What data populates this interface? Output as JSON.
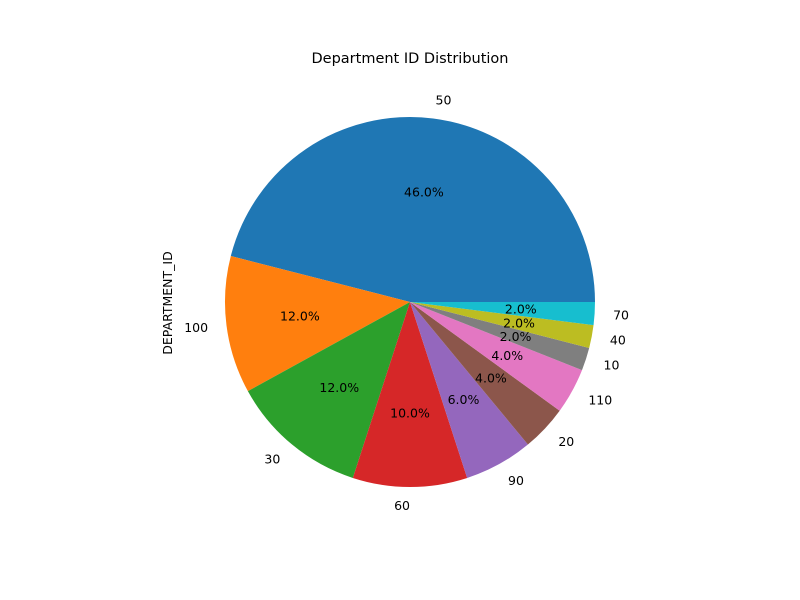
{
  "chart_data": {
    "type": "pie",
    "title": "Department ID Distribution",
    "ylabel": "DEPARTMENT_ID",
    "labels": [
      "50",
      "100",
      "30",
      "60",
      "90",
      "20",
      "110",
      "10",
      "40",
      "70"
    ],
    "values": [
      46.0,
      12.0,
      12.0,
      10.0,
      6.0,
      4.0,
      4.0,
      2.0,
      2.0,
      2.0
    ],
    "percent_labels": [
      "46.0%",
      "12.0%",
      "12.0%",
      "10.0%",
      "6.0%",
      "4.0%",
      "4.0%",
      "2.0%",
      "2.0%",
      "2.0%"
    ],
    "colors": [
      "#1f77b4",
      "#ff7f0e",
      "#2ca02c",
      "#d62728",
      "#9467bd",
      "#8c564b",
      "#e377c2",
      "#7f7f7f",
      "#bcbd22",
      "#17becf"
    ],
    "start_angle_deg": 0,
    "direction": "counterclockwise"
  }
}
